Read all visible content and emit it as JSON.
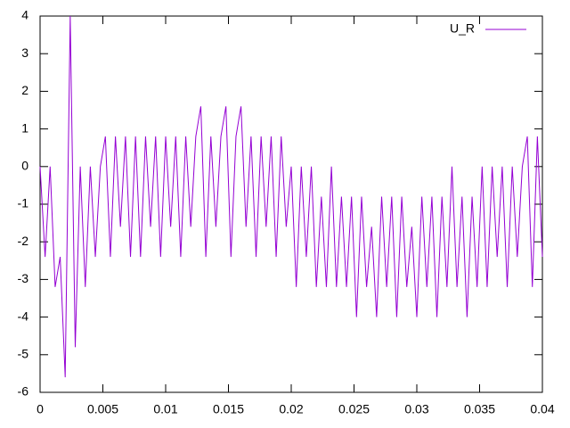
{
  "chart_data": {
    "type": "line",
    "x": [
      0,
      0.0004,
      0.0008,
      0.0012,
      0.0016,
      0.002,
      0.0024,
      0.0028,
      0.0032,
      0.0036,
      0.004,
      0.0044,
      0.0048,
      0.0052,
      0.0056,
      0.006,
      0.0064,
      0.0068,
      0.0072,
      0.0076,
      0.008,
      0.0084,
      0.0088,
      0.0092,
      0.0096,
      0.01,
      0.0104,
      0.0108,
      0.0112,
      0.0116,
      0.012,
      0.0124,
      0.0128,
      0.0132,
      0.0136,
      0.014,
      0.0144,
      0.0148,
      0.0152,
      0.0156,
      0.016,
      0.0164,
      0.0168,
      0.0172,
      0.0176,
      0.018,
      0.0184,
      0.0188,
      0.0192,
      0.0196,
      0.02,
      0.0204,
      0.0208,
      0.0212,
      0.0216,
      0.022,
      0.0224,
      0.0228,
      0.0232,
      0.0236,
      0.024,
      0.0244,
      0.0248,
      0.0252,
      0.0256,
      0.026,
      0.0264,
      0.0268,
      0.0272,
      0.0276,
      0.028,
      0.0284,
      0.0288,
      0.0292,
      0.0296,
      0.03,
      0.0304,
      0.0308,
      0.0312,
      0.0316,
      0.032,
      0.0324,
      0.0328,
      0.0332,
      0.0336,
      0.034,
      0.0344,
      0.0348,
      0.0352,
      0.0356,
      0.036,
      0.0364,
      0.0368,
      0.0372,
      0.0376,
      0.038,
      0.0384,
      0.0388,
      0.0392,
      0.0396,
      0.04
    ],
    "series": [
      {
        "name": "U_R",
        "color": "#9400d3",
        "values": [
          0,
          -2.4,
          0,
          -3.2,
          -2.4,
          -5.6,
          4,
          -4.8,
          0,
          -3.2,
          0,
          -2.4,
          0,
          0.8,
          -2.4,
          0.8,
          -1.6,
          0.8,
          -2.4,
          0.8,
          -2.4,
          0.8,
          -1.6,
          0.8,
          -2.4,
          0.8,
          -1.6,
          0.8,
          -2.4,
          0.8,
          -1.6,
          0.8,
          1.6,
          -2.4,
          0.8,
          -1.6,
          0.8,
          1.6,
          -2.4,
          0.8,
          1.6,
          -1.6,
          0.8,
          -2.4,
          0.8,
          -1.6,
          0.8,
          -2.4,
          0.8,
          -1.6,
          0,
          -3.2,
          0,
          -2.4,
          0,
          -3.2,
          -0.8,
          -3.2,
          0,
          -3.2,
          -0.8,
          -3.2,
          -0.8,
          -4,
          -0.8,
          -3.2,
          -1.6,
          -4,
          -0.8,
          -3.2,
          -0.8,
          -4,
          -0.8,
          -3.2,
          -1.6,
          -4,
          -0.8,
          -3.2,
          -0.8,
          -4,
          -0.8,
          -3.2,
          0,
          -3.2,
          -0.8,
          -4,
          -0.8,
          -3.2,
          0,
          -3.2,
          0,
          -2.4,
          0,
          -3.2,
          0,
          -2.4,
          0,
          0.8,
          -3.2,
          0.8,
          -2.4
        ]
      }
    ],
    "xlim": [
      0,
      0.04
    ],
    "xticks": [
      0,
      0.005,
      0.01,
      0.015,
      0.02,
      0.025,
      0.03,
      0.035,
      0.04
    ],
    "ylim": [
      -6,
      4
    ],
    "yticks": [
      -6,
      -5,
      -4,
      -3,
      -2,
      -1,
      0,
      1,
      2,
      3,
      4
    ],
    "legend": "top-right"
  }
}
